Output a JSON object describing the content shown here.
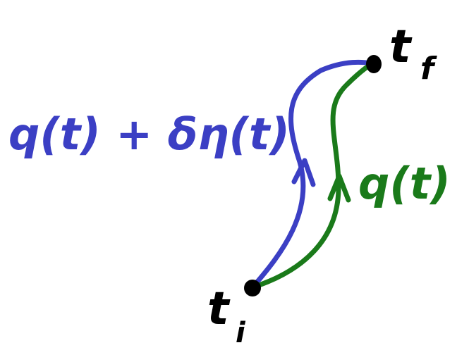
{
  "diagram": {
    "labels": {
      "varied_path": "q(t) + δη(t)",
      "true_path": "q(t)",
      "initial_time": "t",
      "initial_subscript": "i",
      "final_time": "t",
      "final_subscript": "f"
    },
    "colors": {
      "varied_path": "#3b3fc4",
      "true_path": "#1a7a1a",
      "endpoints": "#000000",
      "background": "#ffffff"
    },
    "icons": {
      "varied_path_arrow": "arrowhead-up-icon",
      "true_path_arrow": "arrowhead-up-icon"
    }
  }
}
